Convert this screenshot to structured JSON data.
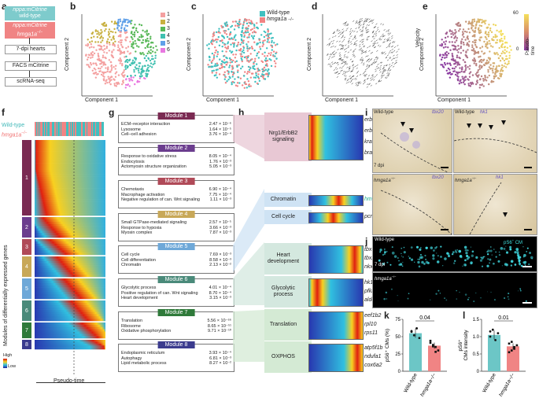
{
  "panels": [
    "a",
    "b",
    "c",
    "d",
    "e",
    "f",
    "g",
    "h",
    "i",
    "j",
    "k",
    "l"
  ],
  "panel_a": {
    "box1_line1": "nppa:mCitrine",
    "box1_line2": "wild-type",
    "box2_line1": "nppa:mCitrine",
    "box2_line2": "hmga1a",
    "box2_sup": "−/−",
    "step1": "7-dpi hearts",
    "step2": "FACS mCitrine",
    "step3": "scRNA-seq",
    "color_wt": "#7ecbcc",
    "color_mut": "#f08484"
  },
  "panel_b": {
    "xlabel": "Component 1",
    "ylabel": "Component 2",
    "legend": [
      "1",
      "2",
      "3",
      "4",
      "5",
      "6"
    ],
    "colors": [
      "#f4a0a0",
      "#c8b040",
      "#58b858",
      "#40c0b0",
      "#60a0e8",
      "#e878e0"
    ]
  },
  "panel_c": {
    "xlabel": "Component 1",
    "ylabel": "Component 2",
    "legend_wt": "Wild-type",
    "legend_mut": "hmga1a",
    "legend_mut_sup": "−/−"
  },
  "panel_d": {
    "xlabel": "Component 1",
    "ylabel": "Component 2",
    "side_label": "Velocity"
  },
  "panel_e": {
    "xlabel": "Component 1",
    "ylabel": "Component 2",
    "cbar_max": "60",
    "cbar_min": "0",
    "cbar_label": "Pseudo-time"
  },
  "panel_f": {
    "legend_wt": "Wild-type",
    "legend_mut": "hmga1a",
    "legend_mut_sup": "−/−",
    "ylabel": "Modules of differentially expressed genes",
    "xlabel": "Pseudo-time",
    "cbar_high": "High",
    "cbar_low": "Low",
    "modules": [
      "1",
      "2",
      "3",
      "4",
      "5",
      "6",
      "7",
      "8"
    ]
  },
  "panel_g": {
    "modules": [
      {
        "title": "Module 1",
        "color": "#7a2a52",
        "rows": [
          [
            "ECM–receptor interaction",
            "2.47 × 10⁻⁶"
          ],
          [
            "Lysosome",
            "1.64 × 10⁻⁵"
          ],
          [
            "Cell–cell adhesion",
            "3.76 × 10⁻⁴"
          ]
        ]
      },
      {
        "title": "Module 2",
        "color": "#6b3d8e",
        "rows": [
          [
            "Response to oxidative stress",
            "8.05 × 10⁻⁴"
          ],
          [
            "Endocytosis",
            "1.76 × 10⁻³"
          ],
          [
            "Actomyosin structure organization",
            "5.05 × 10⁻³"
          ]
        ]
      },
      {
        "title": "Module 3",
        "color": "#b04a58",
        "rows": [
          [
            "Chemotaxis",
            "6.90 × 10⁻⁴"
          ],
          [
            "Macrophage activation",
            "7.75 × 10⁻⁴"
          ],
          [
            "Negative regulation of can. Wnt signaling",
            "1.11 × 10⁻³"
          ]
        ]
      },
      {
        "title": "Module 4",
        "color": "#c8a858",
        "rows": [
          [
            "Small GTPase-mediated signaling",
            "2.57 × 10⁻⁵"
          ],
          [
            "Response to hypoxia",
            "3.66 × 10⁻³"
          ],
          [
            "Myosin complex",
            "7.87 × 10⁻³"
          ]
        ]
      },
      {
        "title": "Module 5",
        "color": "#6ea8d8",
        "rows": [
          [
            "Cell cycle",
            "7.69 × 10⁻³"
          ],
          [
            "Cell differentiation",
            "8.58 × 10⁻³"
          ],
          [
            "Chromatin",
            "2.13 × 10⁻²"
          ]
        ]
      },
      {
        "title": "Module 6",
        "color": "#4a8a7a",
        "rows": [
          [
            "Glycolytic process",
            "4.01 × 10⁻⁴"
          ],
          [
            "Positive regulation of can. Wnt signaling",
            "8.70 × 10⁻⁴"
          ],
          [
            "Heart development",
            "3.15 × 10⁻³"
          ]
        ]
      },
      {
        "title": "Module 7",
        "color": "#2f7a3a",
        "rows": [
          [
            "Translation",
            "5.56 × 10⁻⁶⁶"
          ],
          [
            "Ribosome",
            "8.65 × 10⁻⁵¹"
          ],
          [
            "Oxidative phosphorylation",
            "9.71 × 10⁻¹⁰"
          ]
        ]
      },
      {
        "title": "Module 8",
        "color": "#3b3b8e",
        "rows": [
          [
            "Endoplasmic reticulum",
            "3.93 × 10⁻⁴"
          ],
          [
            "Autophagy",
            "6.81 × 10⁻³"
          ],
          [
            "Lipid metabolic process",
            "8.27 × 10⁻²"
          ]
        ]
      }
    ]
  },
  "panel_h": {
    "categories": [
      {
        "label": "Nrg1/ErbB2\nsignaling",
        "genes": [
          "erbb2",
          "erbb4",
          "kras",
          "braf"
        ]
      },
      {
        "label": "Chromatin",
        "genes": [
          "hmga1a"
        ]
      },
      {
        "label": "Cell cycle",
        "genes": [
          "pcna"
        ]
      },
      {
        "label": "Heart\ndevelopment",
        "genes": [
          "tbx5a",
          "tbx20",
          "nkx2.5"
        ]
      },
      {
        "label": "Glycolytic\nprocess",
        "genes": [
          "hk1",
          "pfkmb",
          "aldocb"
        ]
      },
      {
        "label": "Translation",
        "genes": [
          "eef1b2",
          "rpl10",
          "rps11"
        ]
      },
      {
        "label": "OXPHOS",
        "genes": [
          "atp5f1b",
          "ndufa1",
          "cox6a2"
        ]
      }
    ],
    "highlight_gene_color": "#20b090"
  },
  "panel_i": {
    "wt": "Wild-type",
    "mut": "hmga1a",
    "mut_sup": "−/−",
    "stain1": "tbx20",
    "stain2": "hk1",
    "dpi": "7 dpi"
  },
  "panel_j": {
    "wt": "Wild-type",
    "mut": "hmga1a",
    "mut_sup": "−/−",
    "stain": "pS6",
    "stain_sup": "+",
    "stain_suffix": " CM",
    "dpi": "7 dpi"
  },
  "chart_data": [
    {
      "type": "bar",
      "panel": "k",
      "categories": [
        "Wild-type",
        "hmga1a−/−"
      ],
      "values": [
        55,
        37
      ],
      "points": [
        [
          58,
          52,
          62,
          48,
          57
        ],
        [
          44,
          38,
          35,
          30,
          41,
          36,
          28
        ]
      ],
      "ylabel": "pS6⁺ CMs (%)",
      "ylim": [
        0,
        75
      ],
      "yticks": [
        "0",
        "25",
        "50",
        "75"
      ],
      "pvalue": "0.04",
      "colors": [
        "#6cc6c6",
        "#f08484"
      ]
    },
    {
      "type": "bar",
      "panel": "l",
      "categories": [
        "Wild-type",
        "hmga1a−/−"
      ],
      "values": [
        1.05,
        0.72
      ],
      "points": [
        [
          1.0,
          1.2,
          0.9,
          1.1,
          1.15
        ],
        [
          0.8,
          0.6,
          0.7,
          0.75,
          0.55,
          0.85,
          0.65
        ]
      ],
      "ylabel": "pS6⁺\nCMs intensity",
      "ylim": [
        0,
        1.5
      ],
      "yticks": [
        "0",
        "0.5",
        "1.0",
        "1.5"
      ],
      "pvalue": "0.01",
      "colors": [
        "#6cc6c6",
        "#f08484"
      ]
    }
  ]
}
